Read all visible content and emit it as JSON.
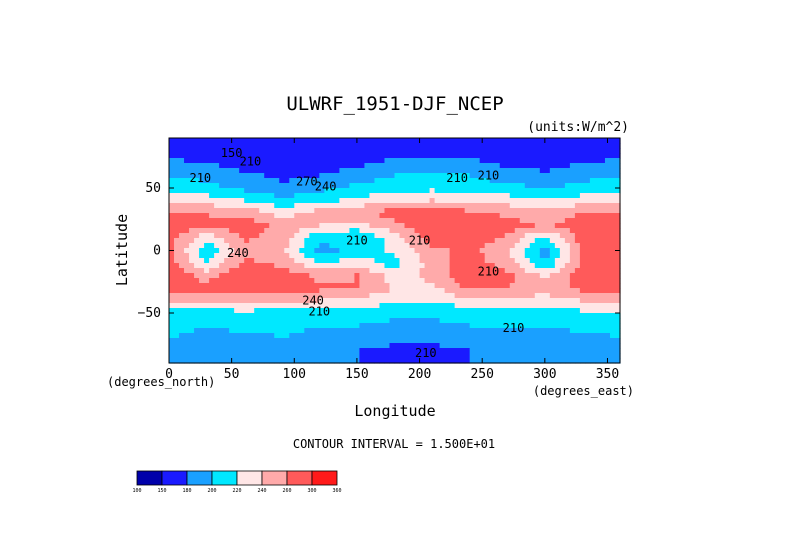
{
  "chart_data": {
    "type": "heatmap",
    "title": "ULWRF_1951-DJF_NCEP",
    "units_label": "(units:W/m^2)",
    "xlabel": "Longitude",
    "ylabel": "Latitude",
    "x_units": "(degrees_east)",
    "y_units": "(degrees_north)",
    "xlim": [
      0,
      360
    ],
    "ylim": [
      -90,
      90
    ],
    "x_ticks": [
      "0",
      "50",
      "100",
      "150",
      "200",
      "250",
      "300",
      "350"
    ],
    "y_ticks": [
      "50",
      "0",
      "−50"
    ],
    "footer": "CONTOUR INTERVAL = 1.500E+01",
    "contour_labels": [
      "150",
      "210",
      "210",
      "270",
      "240",
      "210",
      "210",
      "240",
      "240",
      "210",
      "210",
      "210",
      "210",
      "210",
      "210"
    ],
    "colorbar": {
      "levels": [
        "100",
        "150",
        "180",
        "200",
        "220",
        "240",
        "260",
        "300",
        "360"
      ],
      "colors": [
        "#0000aa",
        "#1a1aff",
        "#1aa0ff",
        "#00e8ff",
        "#ffe6e6",
        "#ffaaaa",
        "#ff5a5a",
        "#ff1a1a"
      ]
    },
    "field": {
      "lat": [
        80,
        70,
        60,
        50,
        40,
        30,
        20,
        10,
        0,
        -10,
        -20,
        -30,
        -40,
        -50,
        -60,
        -70,
        -80
      ],
      "lon": [
        0,
        30,
        60,
        90,
        120,
        150,
        180,
        210,
        240,
        270,
        300,
        330,
        360
      ],
      "values": [
        [
          170,
          165,
          160,
          150,
          160,
          165,
          170,
          170,
          170,
          165,
          160,
          165,
          170
        ],
        [
          185,
          180,
          170,
          160,
          165,
          175,
          185,
          190,
          185,
          175,
          170,
          180,
          185
        ],
        [
          200,
          195,
          185,
          175,
          180,
          190,
          200,
          205,
          200,
          190,
          185,
          195,
          200
        ],
        [
          210,
          205,
          195,
          185,
          195,
          205,
          210,
          215,
          210,
          205,
          200,
          205,
          210
        ],
        [
          235,
          230,
          220,
          205,
          215,
          225,
          235,
          240,
          235,
          230,
          220,
          230,
          235
        ],
        [
          265,
          260,
          255,
          230,
          250,
          255,
          270,
          275,
          265,
          255,
          245,
          260,
          265
        ],
        [
          280,
          260,
          270,
          255,
          240,
          230,
          255,
          275,
          280,
          270,
          255,
          275,
          280
        ],
        [
          270,
          225,
          265,
          250,
          205,
          200,
          230,
          270,
          275,
          255,
          215,
          270,
          270
        ],
        [
          265,
          205,
          250,
          245,
          195,
          205,
          225,
          255,
          265,
          245,
          190,
          260,
          265
        ],
        [
          270,
          220,
          265,
          255,
          220,
          230,
          210,
          250,
          270,
          250,
          200,
          265,
          270
        ],
        [
          275,
          250,
          275,
          270,
          255,
          260,
          230,
          245,
          275,
          265,
          235,
          270,
          275
        ],
        [
          265,
          270,
          270,
          265,
          265,
          260,
          240,
          235,
          265,
          260,
          250,
          265,
          265
        ],
        [
          240,
          245,
          245,
          240,
          240,
          235,
          225,
          220,
          235,
          235,
          230,
          240,
          240
        ],
        [
          215,
          210,
          215,
          210,
          210,
          210,
          205,
          205,
          210,
          210,
          205,
          215,
          215
        ],
        [
          205,
          200,
          205,
          205,
          200,
          200,
          195,
          195,
          200,
          200,
          200,
          205,
          205
        ],
        [
          200,
          195,
          195,
          200,
          195,
          190,
          185,
          185,
          190,
          195,
          195,
          195,
          200
        ],
        [
          190,
          185,
          185,
          190,
          185,
          180,
          175,
          175,
          180,
          185,
          185,
          185,
          190
        ]
      ]
    }
  }
}
